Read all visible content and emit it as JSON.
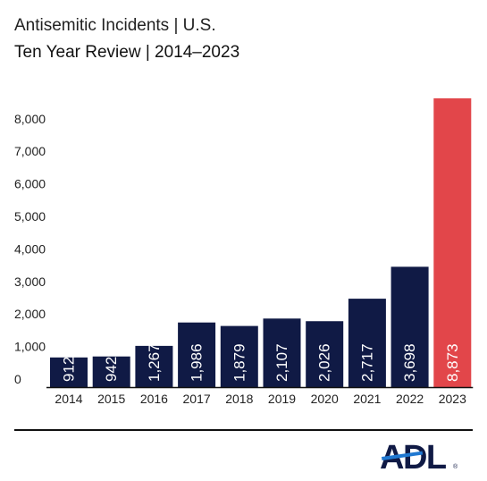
{
  "header": {
    "title": "Antisemitic Incidents | U.S.",
    "subtitle": "Ten Year Review | 2014–2023"
  },
  "footer": {
    "logo_text": "ADL",
    "logo_mark": "®"
  },
  "colors": {
    "bar": "#101a45",
    "highlight": "#e2464a",
    "axis": "#111111",
    "text": "#222222",
    "logo": "#101a45",
    "logo_accent": "#1f78d1"
  },
  "chart_data": {
    "type": "bar",
    "categories": [
      "2014",
      "2015",
      "2016",
      "2017",
      "2018",
      "2019",
      "2020",
      "2021",
      "2022",
      "2023"
    ],
    "values": [
      912,
      942,
      1267,
      1986,
      1879,
      2107,
      2026,
      2717,
      3698,
      8873
    ],
    "data_labels": [
      "912",
      "942",
      "1,267",
      "1,986",
      "1,879",
      "2,107",
      "2,026",
      "2,717",
      "3,698",
      "8,873"
    ],
    "highlight_index": 9,
    "ylim": [
      0,
      8873
    ],
    "yticks": [
      0,
      1000,
      2000,
      3000,
      4000,
      5000,
      6000,
      7000,
      8000
    ],
    "ytick_labels": [
      "0",
      "1,000",
      "2,000",
      "3,000",
      "4,000",
      "5,000",
      "6,000",
      "7,000",
      "8,000"
    ],
    "grid": false,
    "legend": "none",
    "data_label_orientation": "vertical"
  }
}
